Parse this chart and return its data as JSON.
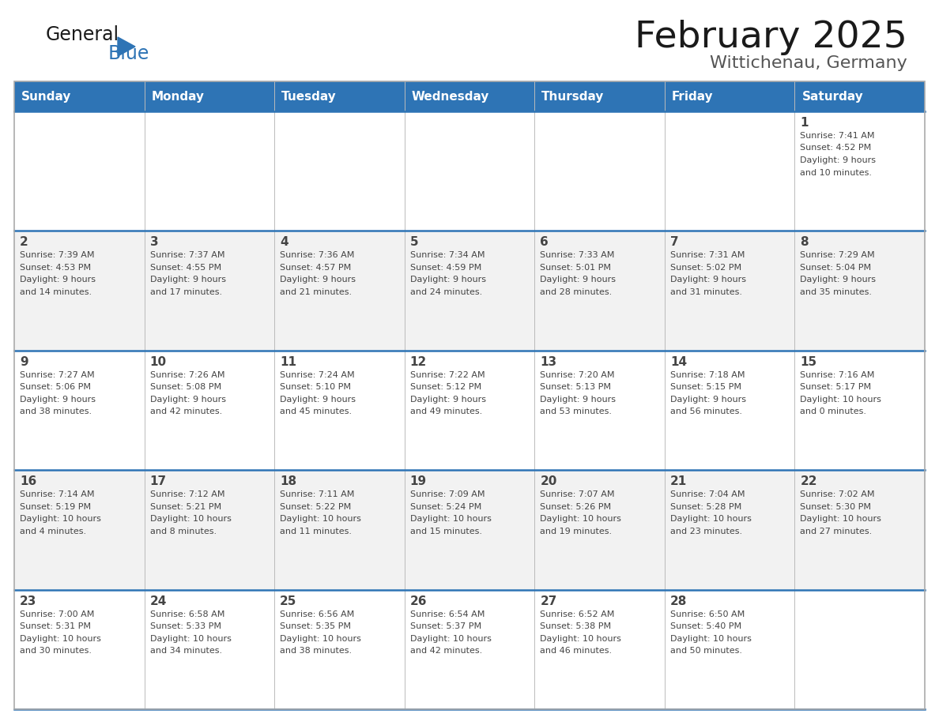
{
  "title": "February 2025",
  "subtitle": "Wittichenau, Germany",
  "header_bg": "#2E74B5",
  "header_text_color": "#FFFFFF",
  "cell_bg_even": "#FFFFFF",
  "cell_bg_odd": "#F2F2F2",
  "divider_color": "#2E74B5",
  "text_color": "#444444",
  "logo_general_color": "#1a1a1a",
  "logo_blue_color": "#2E74B5",
  "logo_triangle_color": "#2E74B5",
  "days_of_week": [
    "Sunday",
    "Monday",
    "Tuesday",
    "Wednesday",
    "Thursday",
    "Friday",
    "Saturday"
  ],
  "calendar": [
    [
      {
        "day": null
      },
      {
        "day": null
      },
      {
        "day": null
      },
      {
        "day": null
      },
      {
        "day": null
      },
      {
        "day": null
      },
      {
        "day": 1,
        "sunrise": "7:41 AM",
        "sunset": "4:52 PM",
        "daylight_h": "9 hours",
        "daylight_m": "and 10 minutes."
      }
    ],
    [
      {
        "day": 2,
        "sunrise": "7:39 AM",
        "sunset": "4:53 PM",
        "daylight_h": "9 hours",
        "daylight_m": "and 14 minutes."
      },
      {
        "day": 3,
        "sunrise": "7:37 AM",
        "sunset": "4:55 PM",
        "daylight_h": "9 hours",
        "daylight_m": "and 17 minutes."
      },
      {
        "day": 4,
        "sunrise": "7:36 AM",
        "sunset": "4:57 PM",
        "daylight_h": "9 hours",
        "daylight_m": "and 21 minutes."
      },
      {
        "day": 5,
        "sunrise": "7:34 AM",
        "sunset": "4:59 PM",
        "daylight_h": "9 hours",
        "daylight_m": "and 24 minutes."
      },
      {
        "day": 6,
        "sunrise": "7:33 AM",
        "sunset": "5:01 PM",
        "daylight_h": "9 hours",
        "daylight_m": "and 28 minutes."
      },
      {
        "day": 7,
        "sunrise": "7:31 AM",
        "sunset": "5:02 PM",
        "daylight_h": "9 hours",
        "daylight_m": "and 31 minutes."
      },
      {
        "day": 8,
        "sunrise": "7:29 AM",
        "sunset": "5:04 PM",
        "daylight_h": "9 hours",
        "daylight_m": "and 35 minutes."
      }
    ],
    [
      {
        "day": 9,
        "sunrise": "7:27 AM",
        "sunset": "5:06 PM",
        "daylight_h": "9 hours",
        "daylight_m": "and 38 minutes."
      },
      {
        "day": 10,
        "sunrise": "7:26 AM",
        "sunset": "5:08 PM",
        "daylight_h": "9 hours",
        "daylight_m": "and 42 minutes."
      },
      {
        "day": 11,
        "sunrise": "7:24 AM",
        "sunset": "5:10 PM",
        "daylight_h": "9 hours",
        "daylight_m": "and 45 minutes."
      },
      {
        "day": 12,
        "sunrise": "7:22 AM",
        "sunset": "5:12 PM",
        "daylight_h": "9 hours",
        "daylight_m": "and 49 minutes."
      },
      {
        "day": 13,
        "sunrise": "7:20 AM",
        "sunset": "5:13 PM",
        "daylight_h": "9 hours",
        "daylight_m": "and 53 minutes."
      },
      {
        "day": 14,
        "sunrise": "7:18 AM",
        "sunset": "5:15 PM",
        "daylight_h": "9 hours",
        "daylight_m": "and 56 minutes."
      },
      {
        "day": 15,
        "sunrise": "7:16 AM",
        "sunset": "5:17 PM",
        "daylight_h": "10 hours",
        "daylight_m": "and 0 minutes."
      }
    ],
    [
      {
        "day": 16,
        "sunrise": "7:14 AM",
        "sunset": "5:19 PM",
        "daylight_h": "10 hours",
        "daylight_m": "and 4 minutes."
      },
      {
        "day": 17,
        "sunrise": "7:12 AM",
        "sunset": "5:21 PM",
        "daylight_h": "10 hours",
        "daylight_m": "and 8 minutes."
      },
      {
        "day": 18,
        "sunrise": "7:11 AM",
        "sunset": "5:22 PM",
        "daylight_h": "10 hours",
        "daylight_m": "and 11 minutes."
      },
      {
        "day": 19,
        "sunrise": "7:09 AM",
        "sunset": "5:24 PM",
        "daylight_h": "10 hours",
        "daylight_m": "and 15 minutes."
      },
      {
        "day": 20,
        "sunrise": "7:07 AM",
        "sunset": "5:26 PM",
        "daylight_h": "10 hours",
        "daylight_m": "and 19 minutes."
      },
      {
        "day": 21,
        "sunrise": "7:04 AM",
        "sunset": "5:28 PM",
        "daylight_h": "10 hours",
        "daylight_m": "and 23 minutes."
      },
      {
        "day": 22,
        "sunrise": "7:02 AM",
        "sunset": "5:30 PM",
        "daylight_h": "10 hours",
        "daylight_m": "and 27 minutes."
      }
    ],
    [
      {
        "day": 23,
        "sunrise": "7:00 AM",
        "sunset": "5:31 PM",
        "daylight_h": "10 hours",
        "daylight_m": "and 30 minutes."
      },
      {
        "day": 24,
        "sunrise": "6:58 AM",
        "sunset": "5:33 PM",
        "daylight_h": "10 hours",
        "daylight_m": "and 34 minutes."
      },
      {
        "day": 25,
        "sunrise": "6:56 AM",
        "sunset": "5:35 PM",
        "daylight_h": "10 hours",
        "daylight_m": "and 38 minutes."
      },
      {
        "day": 26,
        "sunrise": "6:54 AM",
        "sunset": "5:37 PM",
        "daylight_h": "10 hours",
        "daylight_m": "and 42 minutes."
      },
      {
        "day": 27,
        "sunrise": "6:52 AM",
        "sunset": "5:38 PM",
        "daylight_h": "10 hours",
        "daylight_m": "and 46 minutes."
      },
      {
        "day": 28,
        "sunrise": "6:50 AM",
        "sunset": "5:40 PM",
        "daylight_h": "10 hours",
        "daylight_m": "and 50 minutes."
      },
      {
        "day": null
      }
    ]
  ],
  "fig_width": 11.88,
  "fig_height": 9.18,
  "dpi": 100
}
